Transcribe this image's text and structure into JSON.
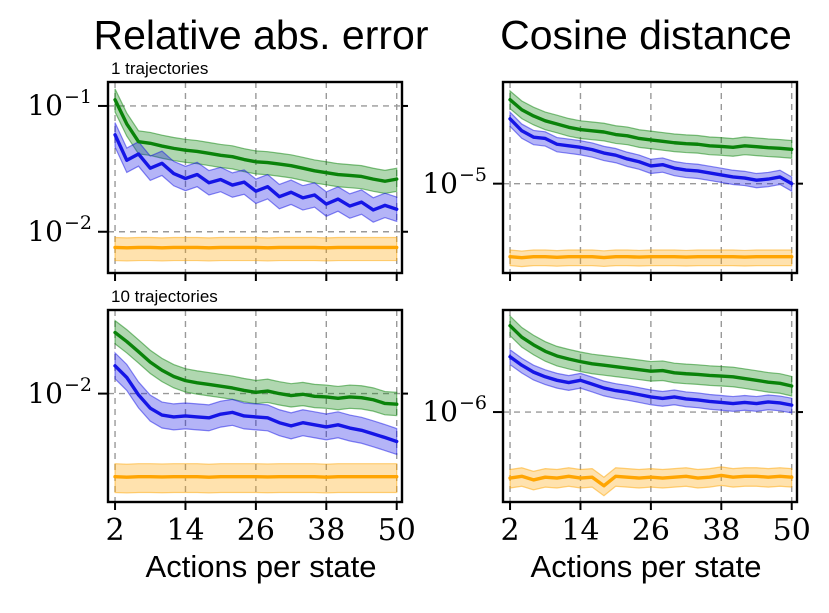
{
  "figure": {
    "background": "#ffffff",
    "columns": [
      {
        "title": "Relative abs. error",
        "xlabel": "Actions per state"
      },
      {
        "title": "Cosine distance",
        "xlabel": "Actions per state"
      }
    ]
  },
  "style": {
    "colors": {
      "green": "#0a830a",
      "blue": "#1515e6",
      "orange": "#ffa502"
    },
    "band_opacity": 0.32,
    "band_edge_opacity": 0.5,
    "grid_color": "#999999",
    "frame_color": "#000000",
    "tick_color": "#000000"
  },
  "chart_data": [
    {
      "id": "rel-abs-error-1-traj",
      "type": "line",
      "title": "1 trajectories",
      "column_title": "Relative abs. error",
      "xlabel": "Actions per state",
      "xscale": "linear",
      "yscale": "log",
      "xlim": [
        0.8,
        50.9
      ],
      "ylim": [
        0.0047,
        0.155
      ],
      "x_ticks": [
        2,
        14,
        26,
        38,
        50
      ],
      "x_tick_labels_visible": false,
      "y_ticks": [
        {
          "value": 0.1,
          "base": "10",
          "exp": "−1"
        },
        {
          "value": 0.01,
          "base": "10",
          "exp": "−2"
        }
      ],
      "grid": true,
      "x": [
        2,
        4,
        6,
        8,
        10,
        12,
        14,
        16,
        18,
        20,
        22,
        24,
        26,
        28,
        30,
        32,
        34,
        36,
        38,
        40,
        42,
        44,
        46,
        48,
        50
      ],
      "series": [
        {
          "name": "green",
          "color_key": "green",
          "band_lo_ratio": 0.8,
          "band_hi_ratio": 1.22,
          "values": [
            0.112,
            0.072,
            0.052,
            0.0505,
            0.048,
            0.046,
            0.0445,
            0.0435,
            0.042,
            0.0405,
            0.0395,
            0.0375,
            0.036,
            0.0355,
            0.0345,
            0.0335,
            0.032,
            0.0305,
            0.0295,
            0.0285,
            0.028,
            0.0275,
            0.0262,
            0.0252,
            0.0262
          ]
        },
        {
          "name": "blue",
          "color_key": "blue",
          "band_lo_ratio": 0.8,
          "band_hi_ratio": 1.25,
          "values": [
            0.059,
            0.037,
            0.0415,
            0.032,
            0.035,
            0.029,
            0.0265,
            0.0285,
            0.0245,
            0.026,
            0.0235,
            0.0248,
            0.021,
            0.0228,
            0.019,
            0.0206,
            0.0186,
            0.0196,
            0.0166,
            0.0182,
            0.016,
            0.0172,
            0.0149,
            0.0162,
            0.0151
          ]
        },
        {
          "name": "orange",
          "color_key": "orange",
          "band_lo_ratio": 0.787,
          "band_hi_ratio": 1.2,
          "values": [
            0.0075,
            0.00745,
            0.0075,
            0.0075,
            0.00745,
            0.0075,
            0.0075,
            0.0075,
            0.00745,
            0.0075,
            0.0075,
            0.0075,
            0.0075,
            0.00745,
            0.0075,
            0.0075,
            0.0075,
            0.0075,
            0.00745,
            0.0075,
            0.0075,
            0.0075,
            0.0075,
            0.0075,
            0.0075
          ]
        }
      ]
    },
    {
      "id": "cosine-distance-1-traj",
      "type": "line",
      "title": "",
      "column_title": "Cosine distance",
      "xlabel": "Actions per state",
      "xscale": "linear",
      "yscale": "log",
      "xlim": [
        0.8,
        50.9
      ],
      "ylim": [
        2.2e-06,
        5.6e-05
      ],
      "x_ticks": [
        2,
        14,
        26,
        38,
        50
      ],
      "x_tick_labels_visible": false,
      "y_ticks": [
        {
          "value": 1e-05,
          "base": "10",
          "exp": "−5"
        }
      ],
      "grid": true,
      "x": [
        2,
        4,
        6,
        8,
        10,
        12,
        14,
        16,
        18,
        20,
        22,
        24,
        26,
        28,
        30,
        32,
        34,
        36,
        38,
        40,
        42,
        44,
        46,
        48,
        50
      ],
      "series": [
        {
          "name": "green",
          "color_key": "green",
          "band_lo_ratio": 0.86,
          "band_hi_ratio": 1.16,
          "values": [
            4.15e-05,
            3.5e-05,
            3.15e-05,
            2.9e-05,
            2.75e-05,
            2.6e-05,
            2.5e-05,
            2.45e-05,
            2.4e-05,
            2.3e-05,
            2.25e-05,
            2.15e-05,
            2.1e-05,
            2.05e-05,
            2e-05,
            1.97e-05,
            1.95e-05,
            1.9e-05,
            1.88e-05,
            1.85e-05,
            1.9e-05,
            1.87e-05,
            1.84e-05,
            1.82e-05,
            1.79e-05
          ]
        },
        {
          "name": "blue",
          "color_key": "blue",
          "band_lo_ratio": 0.88,
          "band_hi_ratio": 1.12,
          "values": [
            3e-05,
            2.45e-05,
            2.2e-05,
            2.15e-05,
            1.95e-05,
            1.9e-05,
            1.85e-05,
            1.78e-05,
            1.68e-05,
            1.62e-05,
            1.52e-05,
            1.45e-05,
            1.35e-05,
            1.38e-05,
            1.3e-05,
            1.26e-05,
            1.24e-05,
            1.2e-05,
            1.16e-05,
            1.12e-05,
            1.1e-05,
            1.06e-05,
            1.08e-05,
            1.12e-05,
            1e-05
          ]
        },
        {
          "name": "orange",
          "color_key": "orange",
          "band_lo_ratio": 0.86,
          "band_hi_ratio": 1.12,
          "values": [
            2.9e-06,
            2.85e-06,
            2.9e-06,
            2.9e-06,
            2.87e-06,
            2.9e-06,
            2.9e-06,
            2.9e-06,
            2.86e-06,
            2.9e-06,
            2.9e-06,
            2.88e-06,
            2.9e-06,
            2.9e-06,
            2.9e-06,
            2.88e-06,
            2.9e-06,
            2.9e-06,
            2.9e-06,
            2.9e-06,
            2.88e-06,
            2.9e-06,
            2.9e-06,
            2.9e-06,
            2.9e-06
          ]
        }
      ]
    },
    {
      "id": "rel-abs-error-10-traj",
      "type": "line",
      "title": "10 trajectories",
      "column_title": "Relative abs. error",
      "xlabel": "Actions per state",
      "xscale": "linear",
      "yscale": "log",
      "xlim": [
        0.8,
        50.9
      ],
      "ylim": [
        0.0019,
        0.036
      ],
      "x_ticks": [
        2,
        14,
        26,
        38,
        50
      ],
      "x_tick_labels_visible": true,
      "y_ticks": [
        {
          "value": 0.01,
          "base": "10",
          "exp": "−2"
        }
      ],
      "grid": true,
      "x": [
        2,
        4,
        6,
        8,
        10,
        12,
        14,
        16,
        18,
        20,
        22,
        24,
        26,
        28,
        30,
        32,
        34,
        36,
        38,
        40,
        42,
        44,
        46,
        48,
        50
      ],
      "series": [
        {
          "name": "green",
          "color_key": "green",
          "band_lo_ratio": 0.84,
          "band_hi_ratio": 1.2,
          "values": [
            0.0255,
            0.0222,
            0.019,
            0.0162,
            0.0143,
            0.013,
            0.0122,
            0.0118,
            0.0115,
            0.0112,
            0.0109,
            0.0105,
            0.0102,
            0.0104,
            0.01,
            0.0097,
            0.0099,
            0.0096,
            0.0095,
            0.0093,
            0.0095,
            0.0094,
            0.0091,
            0.0086,
            0.0085
          ]
        },
        {
          "name": "blue",
          "color_key": "blue",
          "band_lo_ratio": 0.82,
          "band_hi_ratio": 1.22,
          "values": [
            0.0153,
            0.0128,
            0.0098,
            0.008,
            0.0072,
            0.007,
            0.0071,
            0.007,
            0.0069,
            0.0073,
            0.0075,
            0.0071,
            0.007,
            0.0069,
            0.0064,
            0.0061,
            0.0064,
            0.0062,
            0.006,
            0.0062,
            0.0059,
            0.0057,
            0.0054,
            0.0051,
            0.0048
          ]
        },
        {
          "name": "orange",
          "color_key": "orange",
          "band_lo_ratio": 0.785,
          "band_hi_ratio": 1.22,
          "values": [
            0.0028,
            0.00278,
            0.0028,
            0.0028,
            0.00279,
            0.0028,
            0.0028,
            0.0028,
            0.00278,
            0.0028,
            0.0028,
            0.0028,
            0.0028,
            0.00279,
            0.0028,
            0.0028,
            0.0028,
            0.0028,
            0.00278,
            0.0028,
            0.0028,
            0.0028,
            0.0028,
            0.0028,
            0.0028
          ]
        }
      ]
    },
    {
      "id": "cosine-distance-10-traj",
      "type": "line",
      "title": "",
      "column_title": "Cosine distance",
      "xlabel": "Actions per state",
      "xscale": "linear",
      "yscale": "log",
      "xlim": [
        0.8,
        50.9
      ],
      "ylim": [
        2.3e-07,
        5.3e-06
      ],
      "x_ticks": [
        2,
        14,
        26,
        38,
        50
      ],
      "x_tick_labels_visible": true,
      "y_ticks": [
        {
          "value": 1e-06,
          "base": "10",
          "exp": "−6"
        }
      ],
      "grid": true,
      "x": [
        2,
        4,
        6,
        8,
        10,
        12,
        14,
        16,
        18,
        20,
        22,
        24,
        26,
        28,
        30,
        32,
        34,
        36,
        38,
        40,
        42,
        44,
        46,
        48,
        50
      ],
      "series": [
        {
          "name": "green",
          "color_key": "green",
          "band_lo_ratio": 0.85,
          "band_hi_ratio": 1.17,
          "values": [
            4.1e-06,
            3.4e-06,
            3e-06,
            2.7e-06,
            2.5e-06,
            2.38e-06,
            2.28e-06,
            2.2e-06,
            2.15e-06,
            2.1e-06,
            2.05e-06,
            2e-06,
            1.95e-06,
            1.97e-06,
            1.9e-06,
            1.87e-06,
            1.85e-06,
            1.82e-06,
            1.8e-06,
            1.78e-06,
            1.73e-06,
            1.68e-06,
            1.63e-06,
            1.6e-06,
            1.53e-06
          ]
        },
        {
          "name": "blue",
          "color_key": "blue",
          "band_lo_ratio": 0.88,
          "band_hi_ratio": 1.12,
          "values": [
            2.47e-06,
            2.15e-06,
            1.92e-06,
            1.78e-06,
            1.68e-06,
            1.62e-06,
            1.68e-06,
            1.58e-06,
            1.48e-06,
            1.42e-06,
            1.38e-06,
            1.33e-06,
            1.28e-06,
            1.25e-06,
            1.28e-06,
            1.24e-06,
            1.22e-06,
            1.19e-06,
            1.17e-06,
            1.15e-06,
            1.17e-06,
            1.15e-06,
            1.18e-06,
            1.16e-06,
            1.12e-06
          ]
        },
        {
          "name": "orange",
          "color_key": "orange",
          "band_lo_ratio": 0.85,
          "band_hi_ratio": 1.15,
          "values": [
            3.4e-07,
            3.5e-07,
            3.3e-07,
            3.45e-07,
            3.4e-07,
            3.5e-07,
            3.4e-07,
            3.45e-07,
            3e-07,
            3.5e-07,
            3.45e-07,
            3.4e-07,
            3.45e-07,
            3.4e-07,
            3.45e-07,
            3.5e-07,
            3.4e-07,
            3.45e-07,
            3.55e-07,
            3.45e-07,
            3.5e-07,
            3.5e-07,
            3.45e-07,
            3.5e-07,
            3.45e-07
          ]
        }
      ]
    }
  ]
}
